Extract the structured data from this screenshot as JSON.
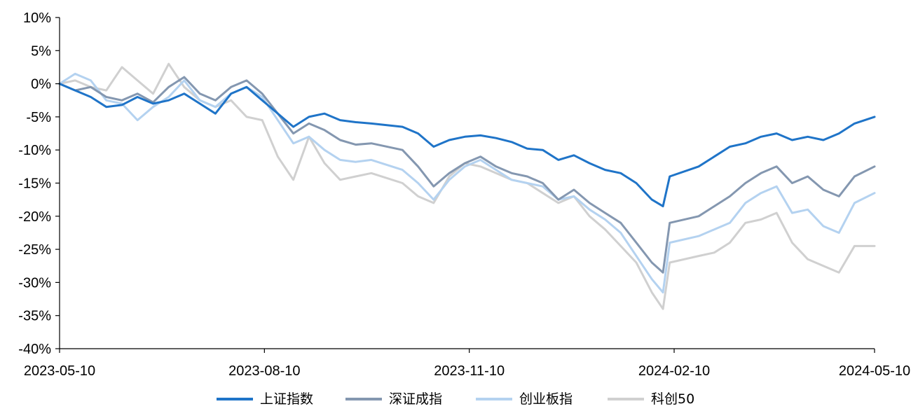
{
  "chart_data": {
    "type": "line",
    "title": "",
    "xlabel": "",
    "ylabel": "",
    "x_ticks": [
      "2023-05-10",
      "2023-08-10",
      "2023-11-10",
      "2024-02-10",
      "2024-05-10"
    ],
    "y_ticks": [
      "10%",
      "5%",
      "0%",
      "-5%",
      "-10%",
      "-15%",
      "-20%",
      "-25%",
      "-30%",
      "-35%",
      "-40%"
    ],
    "ylim": [
      -40,
      10
    ],
    "xlim": [
      "2023-05-10",
      "2024-05-10"
    ],
    "grid": false,
    "legend_position": "bottom",
    "series": [
      {
        "name": "上证指数",
        "color": "#1f74c8",
        "points": [
          [
            "2023-05-10",
            0.0
          ],
          [
            "2023-05-17",
            -1.0
          ],
          [
            "2023-05-24",
            -2.0
          ],
          [
            "2023-05-31",
            -3.5
          ],
          [
            "2023-06-07",
            -3.2
          ],
          [
            "2023-06-14",
            -2.0
          ],
          [
            "2023-06-21",
            -3.0
          ],
          [
            "2023-06-28",
            -2.5
          ],
          [
            "2023-07-05",
            -1.5
          ],
          [
            "2023-07-12",
            -3.0
          ],
          [
            "2023-07-19",
            -4.5
          ],
          [
            "2023-07-26",
            -1.5
          ],
          [
            "2023-08-02",
            -0.5
          ],
          [
            "2023-08-09",
            -2.5
          ],
          [
            "2023-08-16",
            -4.5
          ],
          [
            "2023-08-23",
            -6.5
          ],
          [
            "2023-08-30",
            -5.0
          ],
          [
            "2023-09-06",
            -4.5
          ],
          [
            "2023-09-13",
            -5.5
          ],
          [
            "2023-09-20",
            -5.8
          ],
          [
            "2023-09-27",
            -6.0
          ],
          [
            "2023-10-11",
            -6.5
          ],
          [
            "2023-10-18",
            -7.5
          ],
          [
            "2023-10-25",
            -9.5
          ],
          [
            "2023-11-01",
            -8.5
          ],
          [
            "2023-11-08",
            -8.0
          ],
          [
            "2023-11-15",
            -7.8
          ],
          [
            "2023-11-22",
            -8.2
          ],
          [
            "2023-11-29",
            -8.8
          ],
          [
            "2023-12-06",
            -9.8
          ],
          [
            "2023-12-13",
            -10.0
          ],
          [
            "2023-12-20",
            -11.5
          ],
          [
            "2023-12-27",
            -10.8
          ],
          [
            "2024-01-03",
            -12.0
          ],
          [
            "2024-01-10",
            -13.0
          ],
          [
            "2024-01-17",
            -13.5
          ],
          [
            "2024-01-24",
            -15.0
          ],
          [
            "2024-01-31",
            -17.5
          ],
          [
            "2024-02-05",
            -18.5
          ],
          [
            "2024-02-08",
            -14.0
          ],
          [
            "2024-02-21",
            -12.5
          ],
          [
            "2024-02-28",
            -11.0
          ],
          [
            "2024-03-06",
            -9.5
          ],
          [
            "2024-03-13",
            -9.0
          ],
          [
            "2024-03-20",
            -8.0
          ],
          [
            "2024-03-27",
            -7.5
          ],
          [
            "2024-04-03",
            -8.5
          ],
          [
            "2024-04-10",
            -8.0
          ],
          [
            "2024-04-17",
            -8.5
          ],
          [
            "2024-04-24",
            -7.5
          ],
          [
            "2024-05-01",
            -6.0
          ],
          [
            "2024-05-10",
            -5.0
          ]
        ]
      },
      {
        "name": "深证成指",
        "color": "#8497b0",
        "points": [
          [
            "2023-05-10",
            0.0
          ],
          [
            "2023-05-17",
            -1.0
          ],
          [
            "2023-05-24",
            -0.5
          ],
          [
            "2023-05-31",
            -2.0
          ],
          [
            "2023-06-07",
            -2.5
          ],
          [
            "2023-06-14",
            -1.5
          ],
          [
            "2023-06-21",
            -2.8
          ],
          [
            "2023-06-28",
            -0.5
          ],
          [
            "2023-07-05",
            1.0
          ],
          [
            "2023-07-12",
            -1.5
          ],
          [
            "2023-07-19",
            -2.5
          ],
          [
            "2023-07-26",
            -0.5
          ],
          [
            "2023-08-02",
            0.5
          ],
          [
            "2023-08-09",
            -1.5
          ],
          [
            "2023-08-16",
            -4.5
          ],
          [
            "2023-08-23",
            -7.5
          ],
          [
            "2023-08-30",
            -6.0
          ],
          [
            "2023-09-06",
            -7.0
          ],
          [
            "2023-09-13",
            -8.5
          ],
          [
            "2023-09-20",
            -9.2
          ],
          [
            "2023-09-27",
            -9.0
          ],
          [
            "2023-10-11",
            -10.0
          ],
          [
            "2023-10-18",
            -12.5
          ],
          [
            "2023-10-25",
            -15.5
          ],
          [
            "2023-11-01",
            -13.5
          ],
          [
            "2023-11-08",
            -12.0
          ],
          [
            "2023-11-15",
            -11.0
          ],
          [
            "2023-11-22",
            -12.5
          ],
          [
            "2023-11-29",
            -13.5
          ],
          [
            "2023-12-06",
            -14.0
          ],
          [
            "2023-12-13",
            -15.0
          ],
          [
            "2023-12-20",
            -17.5
          ],
          [
            "2023-12-27",
            -16.0
          ],
          [
            "2024-01-03",
            -18.0
          ],
          [
            "2024-01-10",
            -19.5
          ],
          [
            "2024-01-17",
            -21.0
          ],
          [
            "2024-01-24",
            -24.0
          ],
          [
            "2024-01-31",
            -27.0
          ],
          [
            "2024-02-05",
            -28.5
          ],
          [
            "2024-02-08",
            -21.0
          ],
          [
            "2024-02-21",
            -20.0
          ],
          [
            "2024-02-28",
            -18.5
          ],
          [
            "2024-03-06",
            -17.0
          ],
          [
            "2024-03-13",
            -15.0
          ],
          [
            "2024-03-20",
            -13.5
          ],
          [
            "2024-03-27",
            -12.5
          ],
          [
            "2024-04-03",
            -15.0
          ],
          [
            "2024-04-10",
            -14.0
          ],
          [
            "2024-04-17",
            -16.0
          ],
          [
            "2024-04-24",
            -17.0
          ],
          [
            "2024-05-01",
            -14.0
          ],
          [
            "2024-05-10",
            -12.5
          ]
        ]
      },
      {
        "name": "创业板指",
        "color": "#b4d2f0",
        "points": [
          [
            "2023-05-10",
            0.0
          ],
          [
            "2023-05-17",
            1.5
          ],
          [
            "2023-05-24",
            0.5
          ],
          [
            "2023-05-31",
            -2.5
          ],
          [
            "2023-06-07",
            -3.0
          ],
          [
            "2023-06-14",
            -5.5
          ],
          [
            "2023-06-21",
            -3.5
          ],
          [
            "2023-06-28",
            -2.0
          ],
          [
            "2023-07-05",
            0.5
          ],
          [
            "2023-07-12",
            -2.5
          ],
          [
            "2023-07-19",
            -3.5
          ],
          [
            "2023-07-26",
            -1.5
          ],
          [
            "2023-08-02",
            -0.5
          ],
          [
            "2023-08-09",
            -2.0
          ],
          [
            "2023-08-16",
            -5.5
          ],
          [
            "2023-08-23",
            -9.0
          ],
          [
            "2023-08-30",
            -8.0
          ],
          [
            "2023-09-06",
            -10.0
          ],
          [
            "2023-09-13",
            -11.5
          ],
          [
            "2023-09-20",
            -11.8
          ],
          [
            "2023-09-27",
            -11.5
          ],
          [
            "2023-10-11",
            -13.0
          ],
          [
            "2023-10-18",
            -15.0
          ],
          [
            "2023-10-25",
            -17.5
          ],
          [
            "2023-11-01",
            -14.5
          ],
          [
            "2023-11-08",
            -12.5
          ],
          [
            "2023-11-15",
            -11.5
          ],
          [
            "2023-11-22",
            -13.0
          ],
          [
            "2023-11-29",
            -14.5
          ],
          [
            "2023-12-06",
            -15.0
          ],
          [
            "2023-12-13",
            -15.5
          ],
          [
            "2023-12-20",
            -17.5
          ],
          [
            "2023-12-27",
            -17.0
          ],
          [
            "2024-01-03",
            -19.0
          ],
          [
            "2024-01-10",
            -20.5
          ],
          [
            "2024-01-17",
            -22.5
          ],
          [
            "2024-01-24",
            -26.0
          ],
          [
            "2024-01-31",
            -29.5
          ],
          [
            "2024-02-05",
            -31.5
          ],
          [
            "2024-02-08",
            -24.0
          ],
          [
            "2024-02-21",
            -23.0
          ],
          [
            "2024-02-28",
            -22.0
          ],
          [
            "2024-03-06",
            -21.0
          ],
          [
            "2024-03-13",
            -18.0
          ],
          [
            "2024-03-20",
            -16.5
          ],
          [
            "2024-03-27",
            -15.5
          ],
          [
            "2024-04-03",
            -19.5
          ],
          [
            "2024-04-10",
            -19.0
          ],
          [
            "2024-04-17",
            -21.5
          ],
          [
            "2024-04-24",
            -22.5
          ],
          [
            "2024-05-01",
            -18.0
          ],
          [
            "2024-05-10",
            -16.5
          ]
        ]
      },
      {
        "name": "科创50",
        "color": "#d0d0d0",
        "points": [
          [
            "2023-05-10",
            0.0
          ],
          [
            "2023-05-17",
            0.5
          ],
          [
            "2023-05-24",
            -0.5
          ],
          [
            "2023-05-31",
            -1.0
          ],
          [
            "2023-06-07",
            2.5
          ],
          [
            "2023-06-14",
            0.5
          ],
          [
            "2023-06-21",
            -1.5
          ],
          [
            "2023-06-28",
            3.0
          ],
          [
            "2023-07-05",
            -0.5
          ],
          [
            "2023-07-12",
            -2.5
          ],
          [
            "2023-07-19",
            -3.5
          ],
          [
            "2023-07-26",
            -2.5
          ],
          [
            "2023-08-02",
            -5.0
          ],
          [
            "2023-08-09",
            -5.5
          ],
          [
            "2023-08-16",
            -11.0
          ],
          [
            "2023-08-23",
            -14.5
          ],
          [
            "2023-08-30",
            -8.0
          ],
          [
            "2023-09-06",
            -12.0
          ],
          [
            "2023-09-13",
            -14.5
          ],
          [
            "2023-09-20",
            -14.0
          ],
          [
            "2023-09-27",
            -13.5
          ],
          [
            "2023-10-11",
            -15.0
          ],
          [
            "2023-10-18",
            -17.0
          ],
          [
            "2023-10-25",
            -18.0
          ],
          [
            "2023-11-01",
            -14.0
          ],
          [
            "2023-11-08",
            -12.0
          ],
          [
            "2023-11-15",
            -12.5
          ],
          [
            "2023-11-22",
            -13.5
          ],
          [
            "2023-11-29",
            -14.5
          ],
          [
            "2023-12-06",
            -15.0
          ],
          [
            "2023-12-13",
            -16.5
          ],
          [
            "2023-12-20",
            -18.0
          ],
          [
            "2023-12-27",
            -17.0
          ],
          [
            "2024-01-03",
            -20.0
          ],
          [
            "2024-01-10",
            -22.0
          ],
          [
            "2024-01-17",
            -24.5
          ],
          [
            "2024-01-24",
            -27.0
          ],
          [
            "2024-01-31",
            -31.5
          ],
          [
            "2024-02-05",
            -34.0
          ],
          [
            "2024-02-08",
            -27.0
          ],
          [
            "2024-02-21",
            -26.0
          ],
          [
            "2024-02-28",
            -25.5
          ],
          [
            "2024-03-06",
            -24.0
          ],
          [
            "2024-03-13",
            -21.0
          ],
          [
            "2024-03-20",
            -20.5
          ],
          [
            "2024-03-27",
            -19.5
          ],
          [
            "2024-04-03",
            -24.0
          ],
          [
            "2024-04-10",
            -26.5
          ],
          [
            "2024-04-17",
            -27.5
          ],
          [
            "2024-04-24",
            -28.5
          ],
          [
            "2024-05-01",
            -24.5
          ],
          [
            "2024-05-10",
            -24.5
          ]
        ]
      }
    ]
  }
}
